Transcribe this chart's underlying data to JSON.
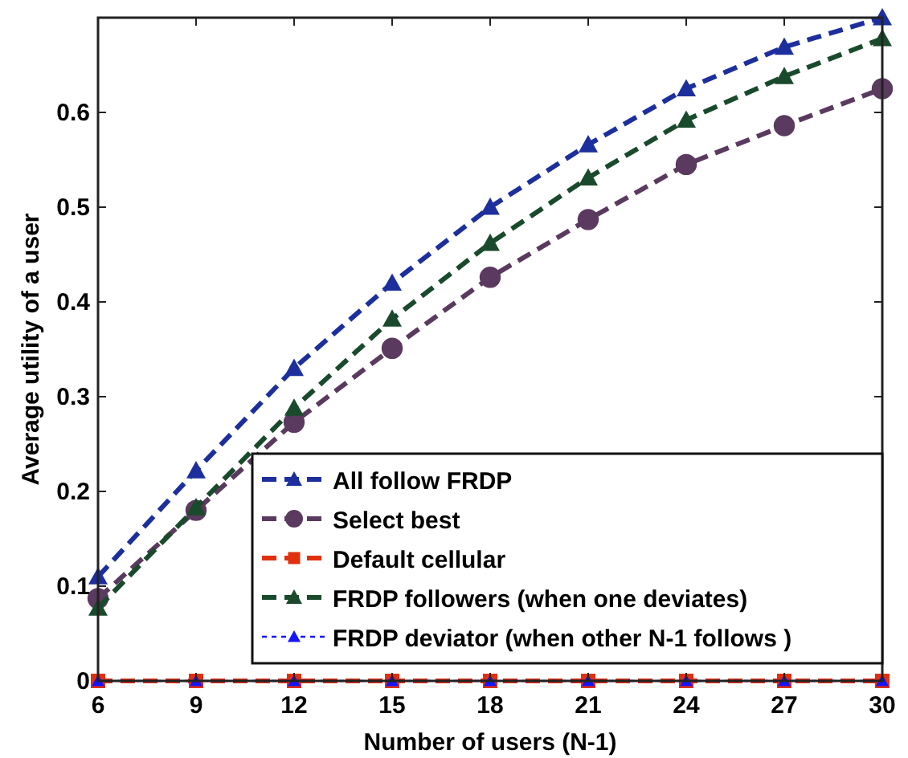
{
  "chart_data": {
    "type": "line",
    "xlabel": "Number of users (N-1)",
    "ylabel": "Average utility of a user",
    "x": [
      6,
      9,
      12,
      15,
      18,
      21,
      24,
      27,
      30
    ],
    "xlim": [
      6,
      30
    ],
    "xticks": [
      6,
      9,
      12,
      15,
      18,
      21,
      24,
      27,
      30
    ],
    "ylim": [
      0,
      0.7
    ],
    "yticks": [
      0,
      0.1,
      0.2,
      0.3,
      0.4,
      0.5,
      0.6
    ],
    "grid": false,
    "legend": "bottom right",
    "series": [
      {
        "name": "All follow FRDP",
        "color": "#1c2f9c",
        "marker": "triangle",
        "line_style": "dashed",
        "values": [
          0.11,
          0.222,
          0.33,
          0.42,
          0.5,
          0.566,
          0.625,
          0.669,
          0.7
        ]
      },
      {
        "name": "Select best",
        "color": "#5a3a5e",
        "marker": "circle",
        "line_style": "dashed",
        "values": [
          0.087,
          0.18,
          0.273,
          0.351,
          0.426,
          0.487,
          0.545,
          0.586,
          0.625
        ]
      },
      {
        "name": "Default cellular",
        "color": "#e0300e",
        "marker": "square",
        "line_style": "dashed",
        "values": [
          0,
          0,
          0,
          0,
          0,
          0,
          0,
          0,
          0
        ]
      },
      {
        "name": "FRDP followers (when one deviates)",
        "color": "#1a4a2c",
        "marker": "triangle",
        "line_style": "dashed",
        "values": [
          0.077,
          0.183,
          0.288,
          0.382,
          0.462,
          0.531,
          0.592,
          0.638,
          0.678
        ]
      },
      {
        "name": "FRDP deviator (when other N-1 follows )",
        "color": "#1414ff",
        "marker": "triangle",
        "line_style": "dotted",
        "values": [
          0,
          0,
          0,
          0,
          0,
          0,
          0,
          0,
          0
        ]
      }
    ]
  }
}
